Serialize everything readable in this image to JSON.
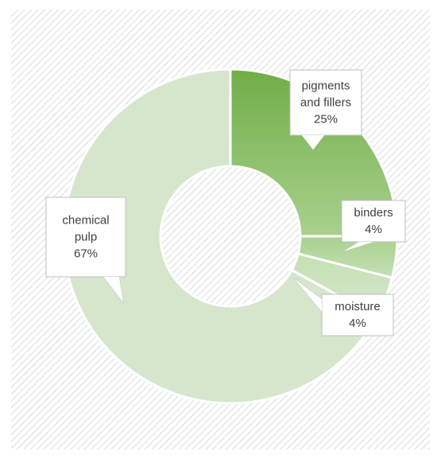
{
  "chart_data": {
    "type": "pie",
    "style": "doughnut",
    "categories": [
      "pigments and fillers",
      "binders",
      "moisture",
      "chemical pulp"
    ],
    "values": [
      25,
      4,
      4,
      67
    ],
    "value_unit": "%",
    "data_labels": [
      [
        "pigments",
        "and fillers",
        "25%"
      ],
      [
        "binders",
        "4%"
      ],
      [
        "moisture",
        "4%"
      ],
      [
        "chemical",
        "pulp",
        "67%"
      ]
    ],
    "colors": [
      "#70ad47",
      "#a9d18e",
      "#c5e0b4",
      "#d6e6cd"
    ],
    "background_pattern": "diagonal hatch",
    "legend": "none"
  }
}
